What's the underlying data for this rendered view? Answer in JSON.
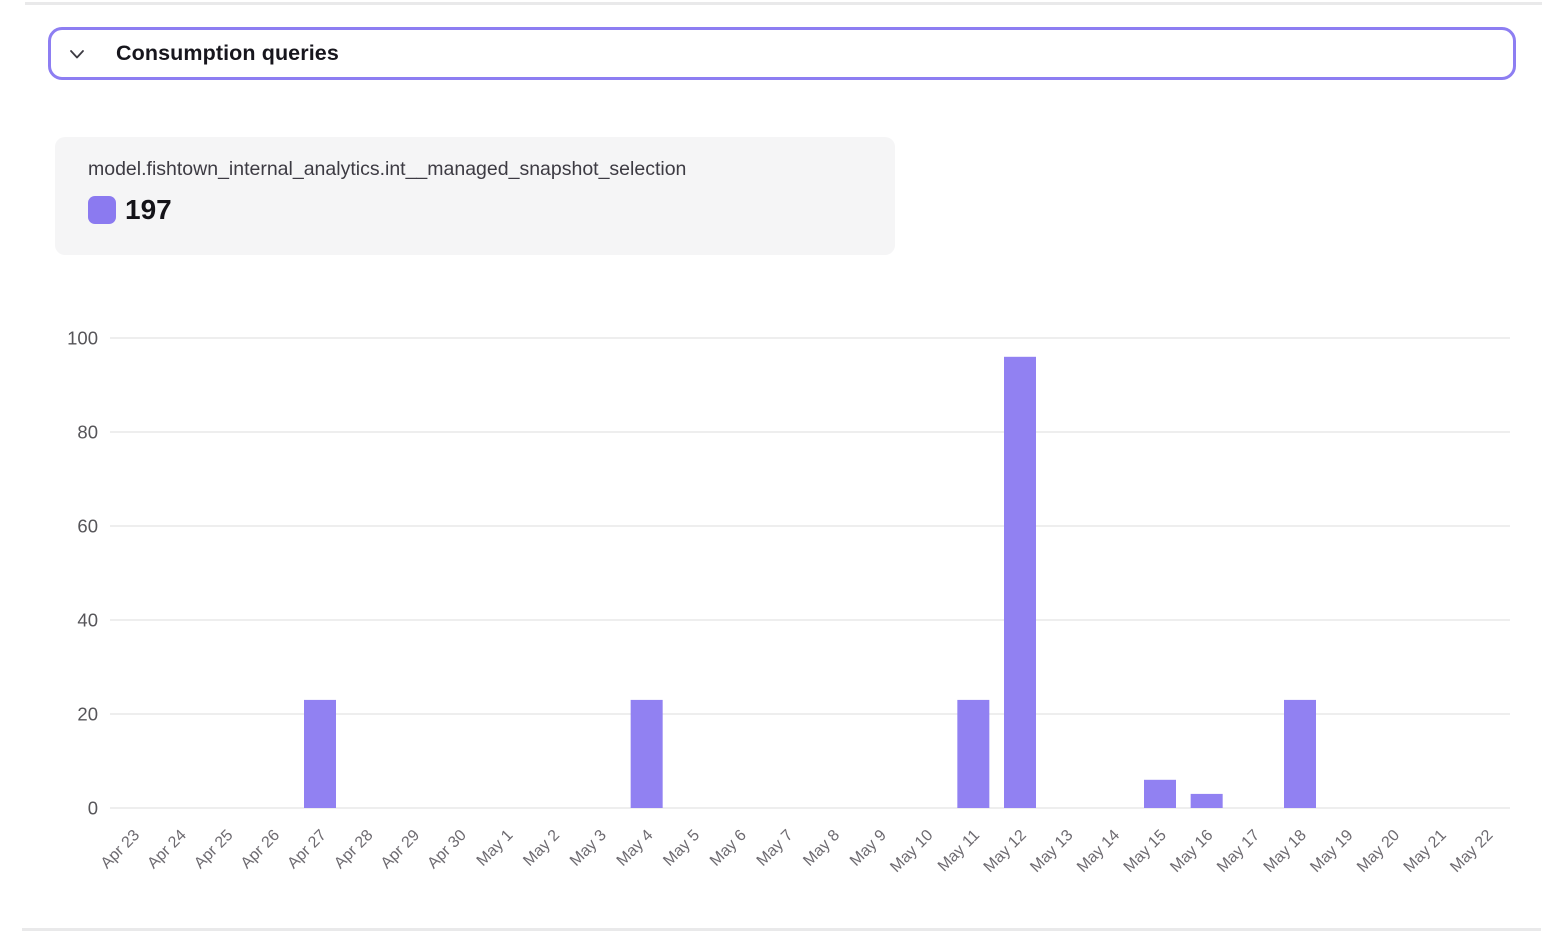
{
  "header": {
    "title": "Consumption queries"
  },
  "tooltip": {
    "series_name": "model.fishtown_internal_analytics.int__managed_snapshot_selection",
    "value": "197",
    "swatch_color": "#8b7af0"
  },
  "chart_data": {
    "type": "bar",
    "title": "",
    "xlabel": "",
    "ylabel": "",
    "series_name": "model.fishtown_internal_analytics.int__managed_snapshot_selection",
    "total": 197,
    "categories": [
      "Apr 23",
      "Apr 24",
      "Apr 25",
      "Apr 26",
      "Apr 27",
      "Apr 28",
      "Apr 29",
      "Apr 30",
      "May 1",
      "May 2",
      "May 3",
      "May 4",
      "May 5",
      "May 6",
      "May 7",
      "May 8",
      "May 9",
      "May 10",
      "May 11",
      "May 12",
      "May 13",
      "May 14",
      "May 15",
      "May 16",
      "May 17",
      "May 18",
      "May 19",
      "May 20",
      "May 21",
      "May 22"
    ],
    "values": [
      0,
      0,
      0,
      0,
      23,
      0,
      0,
      0,
      0,
      0,
      0,
      23,
      0,
      0,
      0,
      0,
      0,
      0,
      23,
      96,
      0,
      0,
      6,
      3,
      0,
      23,
      0,
      0,
      0,
      0
    ],
    "ylim": [
      0,
      100
    ],
    "yticks": [
      0,
      20,
      40,
      60,
      80,
      100
    ],
    "grid": true,
    "legend_position": "top-left-card",
    "bar_color": "#9181f2",
    "gridline_color": "#e8e8e9",
    "ytick_color": "#565559",
    "xtick_color": "#6d6a70",
    "xtick_rotation": -45
  },
  "colors": {
    "accent_purple": "#8d7ef2",
    "divider": "#e9e9ea",
    "card_bg": "#f5f5f6",
    "title_text": "#17161d"
  }
}
